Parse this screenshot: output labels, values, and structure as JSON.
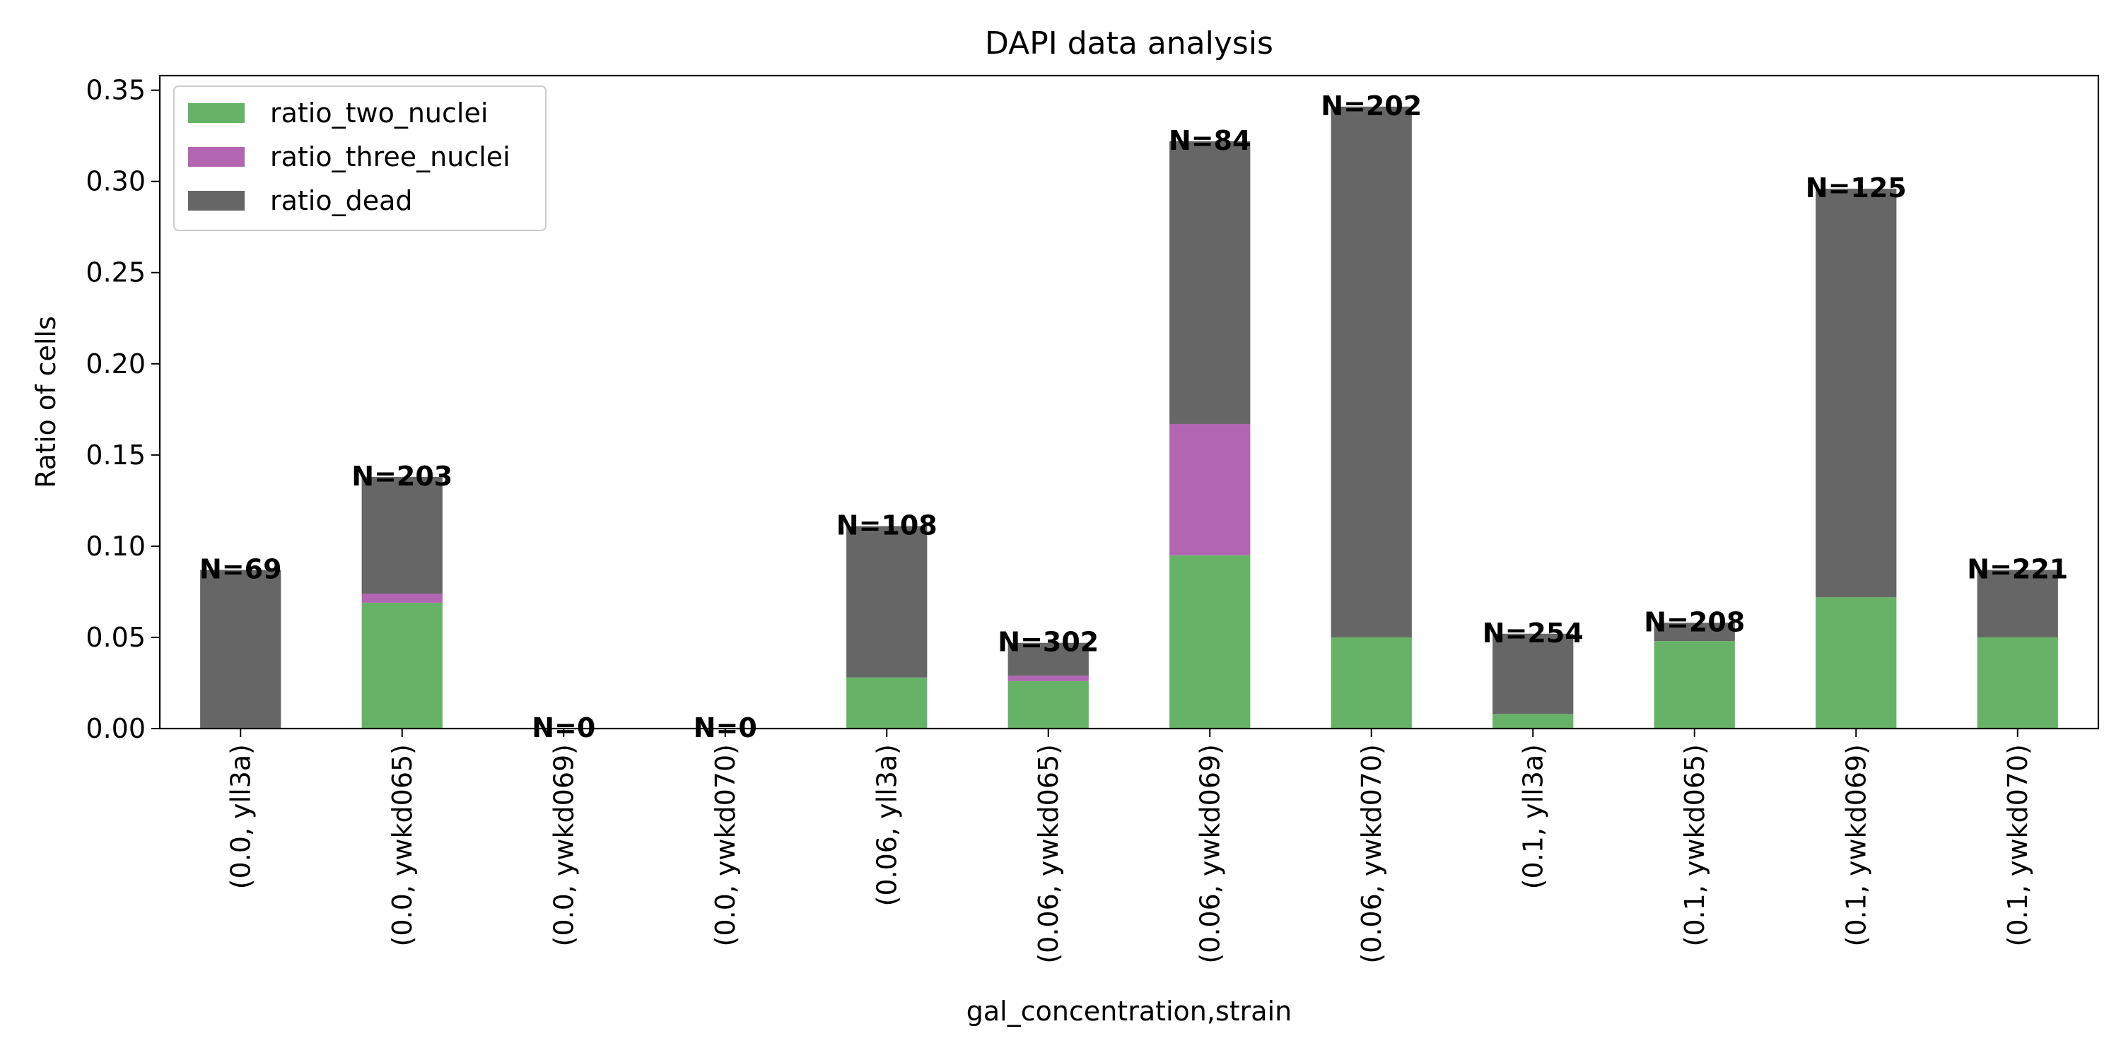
{
  "chart_data": {
    "type": "bar",
    "stacked": true,
    "title": "DAPI data analysis",
    "xlabel": "gal_concentration,strain",
    "ylabel": "Ratio of cells",
    "ylim": [
      0,
      0.358
    ],
    "yticks": [
      "0.00",
      "0.05",
      "0.10",
      "0.15",
      "0.20",
      "0.25",
      "0.30",
      "0.35"
    ],
    "ytick_values": [
      0,
      0.05,
      0.1,
      0.15,
      0.2,
      0.25,
      0.3,
      0.35
    ],
    "categories": [
      "(0.0, yll3a)",
      "(0.0, ywkd065)",
      "(0.0, ywkd069)",
      "(0.0, ywkd070)",
      "(0.06, yll3a)",
      "(0.06, ywkd065)",
      "(0.06, ywkd069)",
      "(0.06, ywkd070)",
      "(0.1, yll3a)",
      "(0.1, ywkd065)",
      "(0.1, ywkd069)",
      "(0.1, ywkd070)"
    ],
    "series": [
      {
        "name": "ratio_two_nuclei",
        "color": "#66b266",
        "values": [
          0.0,
          0.069,
          0.0,
          0.0,
          0.028,
          0.026,
          0.095,
          0.05,
          0.008,
          0.048,
          0.072,
          0.05
        ]
      },
      {
        "name": "ratio_three_nuclei",
        "color": "#b266b2",
        "values": [
          0.0,
          0.005,
          0.0,
          0.0,
          0.0,
          0.003,
          0.072,
          0.0,
          0.0,
          0.0,
          0.0,
          0.0
        ]
      },
      {
        "name": "ratio_dead",
        "color": "#666666",
        "values": [
          0.087,
          0.064,
          0.0,
          0.0,
          0.083,
          0.018,
          0.155,
          0.291,
          0.044,
          0.01,
          0.224,
          0.037
        ]
      }
    ],
    "annotations": [
      "N=69",
      "N=203",
      "N=0",
      "N=0",
      "N=108",
      "N=302",
      "N=84",
      "N=202",
      "N=254",
      "N=208",
      "N=125",
      "N=221"
    ],
    "legend_position": "top-left",
    "grid": false
  }
}
